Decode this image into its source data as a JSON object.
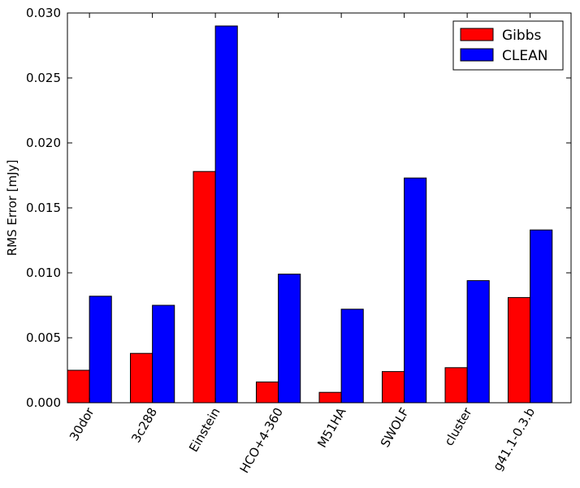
{
  "chart_data": {
    "type": "bar",
    "title": "",
    "xlabel": "",
    "ylabel": "RMS Error [mJy]",
    "ylim": [
      0,
      0.03
    ],
    "yticks": [
      "0.000",
      "0.005",
      "0.010",
      "0.015",
      "0.020",
      "0.025",
      "0.030"
    ],
    "categories": [
      "30dor",
      "3c288",
      "Einstein",
      "HCO+4-360",
      "M51HA",
      "SWOLF",
      "cluster",
      "g41.1-0.3.b"
    ],
    "series": [
      {
        "name": "Gibbs",
        "color": "#ff0000",
        "values": [
          0.0025,
          0.0038,
          0.0178,
          0.0016,
          0.0008,
          0.0024,
          0.0027,
          0.0081
        ]
      },
      {
        "name": "CLEAN",
        "color": "#0000ff",
        "values": [
          0.0082,
          0.0075,
          0.029,
          0.0099,
          0.0072,
          0.0173,
          0.0094,
          0.0133
        ]
      }
    ],
    "legend": "top-right",
    "grid": false
  }
}
